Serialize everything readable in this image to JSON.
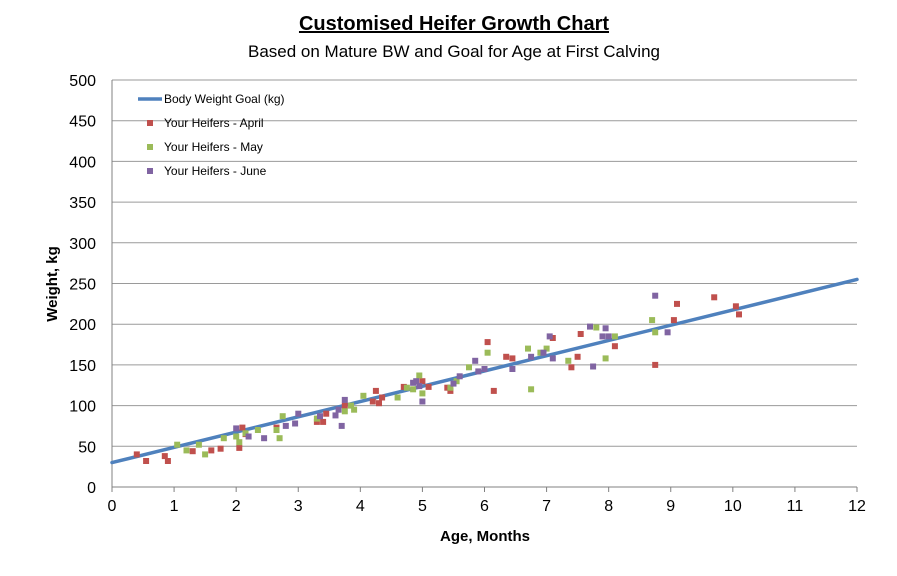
{
  "chart_data": {
    "type": "scatter",
    "title": "Customised Heifer Growth Chart",
    "subtitle": "Based on Mature BW and Goal for Age at First Calving",
    "xlabel": "Age, Months",
    "ylabel": "Weight, kg",
    "xlim": [
      0,
      12
    ],
    "ylim": [
      0,
      500
    ],
    "xticks": [
      0,
      1,
      2,
      3,
      4,
      5,
      6,
      7,
      8,
      9,
      10,
      11,
      12
    ],
    "yticks": [
      0,
      50,
      100,
      150,
      200,
      250,
      300,
      350,
      400,
      450,
      500
    ],
    "grid": "horizontal",
    "legend_position": "top-left",
    "series": [
      {
        "name": "Body Weight Goal (kg)",
        "kind": "line",
        "color": "#4f81bd",
        "points": [
          [
            0,
            30
          ],
          [
            12,
            255
          ]
        ]
      },
      {
        "name": "Your Heifers - April",
        "kind": "scatter",
        "color": "#c0504d",
        "points": [
          [
            0.4,
            40
          ],
          [
            0.55,
            32
          ],
          [
            0.85,
            38
          ],
          [
            0.9,
            32
          ],
          [
            1.3,
            44
          ],
          [
            1.6,
            45
          ],
          [
            1.75,
            47
          ],
          [
            2.05,
            48
          ],
          [
            2.1,
            73
          ],
          [
            2.15,
            65
          ],
          [
            2.65,
            73
          ],
          [
            3.3,
            80
          ],
          [
            3.4,
            80
          ],
          [
            3.45,
            90
          ],
          [
            3.75,
            100
          ],
          [
            4.2,
            105
          ],
          [
            4.25,
            118
          ],
          [
            4.3,
            103
          ],
          [
            4.35,
            110
          ],
          [
            4.7,
            123
          ],
          [
            5.0,
            130
          ],
          [
            5.1,
            123
          ],
          [
            5.4,
            122
          ],
          [
            5.45,
            118
          ],
          [
            6.05,
            178
          ],
          [
            6.15,
            118
          ],
          [
            6.35,
            160
          ],
          [
            6.45,
            158
          ],
          [
            7.1,
            183
          ],
          [
            7.4,
            147
          ],
          [
            7.5,
            160
          ],
          [
            7.55,
            188
          ],
          [
            8.1,
            173
          ],
          [
            8.75,
            150
          ],
          [
            9.05,
            205
          ],
          [
            9.1,
            225
          ],
          [
            9.7,
            233
          ],
          [
            10.05,
            222
          ],
          [
            10.1,
            212
          ]
        ]
      },
      {
        "name": "Your Heifers - May",
        "kind": "scatter",
        "color": "#9bbb59",
        "points": [
          [
            1.05,
            52
          ],
          [
            1.2,
            45
          ],
          [
            1.4,
            52
          ],
          [
            1.5,
            40
          ],
          [
            1.8,
            60
          ],
          [
            2.0,
            62
          ],
          [
            2.05,
            55
          ],
          [
            2.15,
            66
          ],
          [
            2.35,
            70
          ],
          [
            2.65,
            70
          ],
          [
            2.7,
            60
          ],
          [
            2.75,
            87
          ],
          [
            3.3,
            84
          ],
          [
            3.75,
            93
          ],
          [
            3.85,
            100
          ],
          [
            3.9,
            95
          ],
          [
            4.05,
            112
          ],
          [
            4.6,
            110
          ],
          [
            4.75,
            122
          ],
          [
            4.85,
            120
          ],
          [
            4.95,
            137
          ],
          [
            5.0,
            115
          ],
          [
            5.45,
            122
          ],
          [
            5.55,
            130
          ],
          [
            5.75,
            147
          ],
          [
            6.05,
            165
          ],
          [
            6.7,
            170
          ],
          [
            6.75,
            120
          ],
          [
            6.9,
            165
          ],
          [
            7.0,
            170
          ],
          [
            7.35,
            155
          ],
          [
            7.8,
            196
          ],
          [
            7.95,
            158
          ],
          [
            8.1,
            185
          ],
          [
            8.7,
            205
          ],
          [
            8.75,
            190
          ]
        ]
      },
      {
        "name": "Your Heifers - June",
        "kind": "scatter",
        "color": "#8064a2",
        "points": [
          [
            2.0,
            72
          ],
          [
            2.2,
            62
          ],
          [
            2.45,
            60
          ],
          [
            2.8,
            75
          ],
          [
            2.95,
            78
          ],
          [
            3.0,
            90
          ],
          [
            3.35,
            87
          ],
          [
            3.6,
            88
          ],
          [
            3.65,
            95
          ],
          [
            3.7,
            75
          ],
          [
            3.75,
            107
          ],
          [
            4.85,
            128
          ],
          [
            4.9,
            130
          ],
          [
            4.95,
            124
          ],
          [
            5.0,
            105
          ],
          [
            5.5,
            127
          ],
          [
            5.6,
            136
          ],
          [
            5.85,
            155
          ],
          [
            5.9,
            142
          ],
          [
            6.0,
            145
          ],
          [
            6.45,
            145
          ],
          [
            6.75,
            160
          ],
          [
            6.95,
            165
          ],
          [
            7.05,
            185
          ],
          [
            7.1,
            158
          ],
          [
            7.7,
            197
          ],
          [
            7.75,
            148
          ],
          [
            7.9,
            185
          ],
          [
            7.95,
            195
          ],
          [
            8.0,
            185
          ],
          [
            8.75,
            235
          ],
          [
            8.95,
            190
          ]
        ]
      }
    ]
  }
}
